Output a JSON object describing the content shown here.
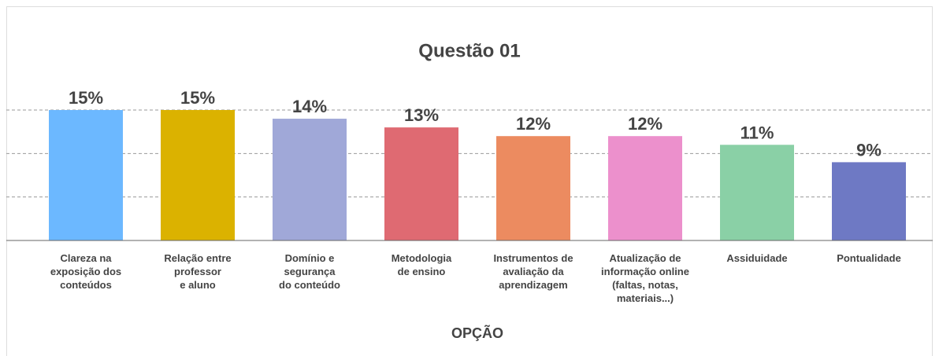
{
  "chart_data": {
    "type": "bar",
    "title": "Questão 01",
    "x_label": "OPÇÃO",
    "categories": [
      "Clareza na\nexposição dos\nconteúdos",
      "Relação entre\nprofessor\ne aluno",
      "Domínio e\nsegurança\ndo conteúdo",
      "Metodologia\nde ensino",
      "Instrumentos de\navaliação da\naprendizagem",
      "Atualização de\ninformação online\n(faltas, notas,\nmateriais...)",
      "Assiduidade",
      "Pontualidade"
    ],
    "values": [
      15,
      15,
      14,
      13,
      12,
      12,
      11,
      9
    ],
    "value_labels": [
      "15%",
      "15%",
      "14%",
      "13%",
      "12%",
      "12%",
      "11%",
      "9%"
    ],
    "colors": [
      "#6cb8ff",
      "#dbb200",
      "#a0a8d8",
      "#df6a72",
      "#ec8b60",
      "#ec90cc",
      "#8ad0a6",
      "#6e79c4"
    ],
    "ylim": [
      0,
      15
    ],
    "yticks": [
      5,
      10,
      15
    ],
    "grid": true
  }
}
